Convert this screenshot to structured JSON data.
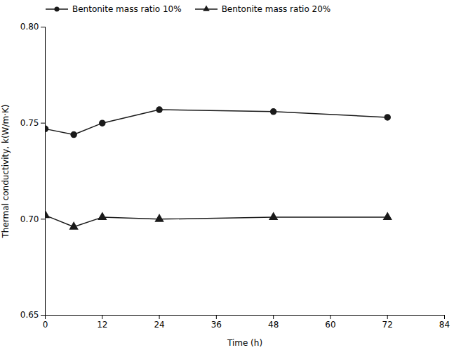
{
  "chart_data": {
    "type": "line",
    "x": [
      0,
      6,
      12,
      24,
      48,
      72
    ],
    "xlabel": "Time (h)",
    "ylabel": "Thermal conductivity, k(W/m·K)",
    "xlim": [
      0,
      84
    ],
    "ylim": [
      0.65,
      0.8
    ],
    "xticks": [
      0,
      12,
      24,
      36,
      48,
      60,
      72,
      84
    ],
    "yticks": [
      {
        "value": 0.65,
        "label": "0.65"
      },
      {
        "value": 0.7,
        "label": "0.70"
      },
      {
        "value": 0.75,
        "label": "0.75"
      },
      {
        "value": 0.8,
        "label": "0.80"
      }
    ],
    "grid": false,
    "legend": "upper left",
    "series": [
      {
        "name": "Bentonite mass ratio 10%",
        "color": "#1a1a1a",
        "marker": "circle",
        "line_style": "solid",
        "values": [
          0.747,
          0.744,
          0.75,
          0.757,
          0.756,
          0.753
        ]
      },
      {
        "name": "Bentonite mass ratio 20%",
        "color": "#1a1a1a",
        "marker": "triangle",
        "line_style": "solid",
        "values": [
          0.702,
          0.696,
          0.701,
          0.7,
          0.701,
          0.701
        ]
      }
    ]
  }
}
